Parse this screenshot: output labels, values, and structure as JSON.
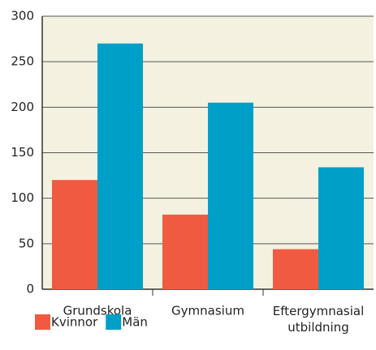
{
  "chart_data": {
    "type": "bar",
    "categories": [
      "Grundskola",
      "Gymnasium",
      "Eftergymnasial utbildning"
    ],
    "series": [
      {
        "name": "Kvinnor",
        "color": "#f05a40",
        "values": [
          120,
          82,
          44
        ]
      },
      {
        "name": "Män",
        "color": "#009fc7",
        "values": [
          270,
          205,
          134
        ]
      }
    ],
    "ylim": [
      0,
      300
    ],
    "yticks": [
      0,
      50,
      100,
      150,
      200,
      250,
      300
    ],
    "grid": true,
    "background": "#f4f1e1"
  }
}
